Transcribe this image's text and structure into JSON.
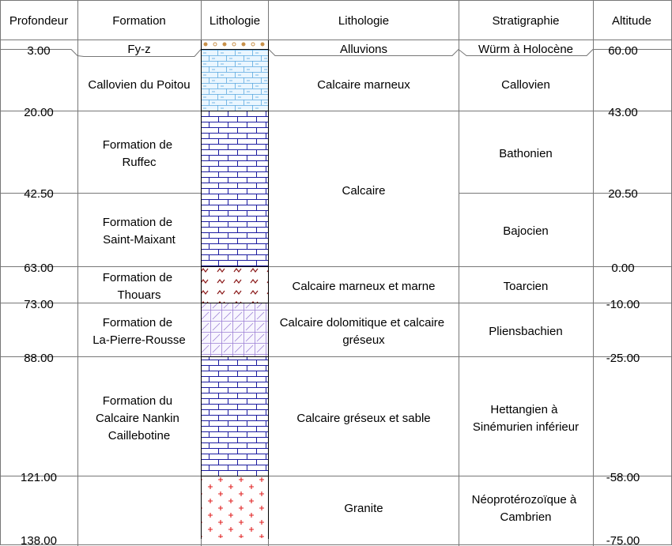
{
  "headers": {
    "depth": "Profondeur",
    "formation": "Formation",
    "lithology_pattern": "Lithologie",
    "lithology": "Lithologie",
    "stratigraphy": "Stratigraphie",
    "altitude": "Altitude"
  },
  "top_row": {
    "formation": "Fy-z",
    "lithology": "Alluvions",
    "stratigraphy": "Würm à Holocène"
  },
  "depths": [
    "3.00",
    "20.00",
    "42.50",
    "63.00",
    "73.00",
    "88.00",
    "121.00",
    "138.00"
  ],
  "altitudes": [
    "60.00",
    "43.00",
    "20.50",
    "0.00",
    "-10.00",
    "-25.00",
    "-58.00",
    "-75.00"
  ],
  "formations": [
    [
      "Callovien du Poitou"
    ],
    [
      "Formation de",
      "Ruffec"
    ],
    [
      "Formation de",
      "Saint-Maixant"
    ],
    [
      "Formation de",
      "Thouars"
    ],
    [
      "Formation de",
      "La-Pierre-Rousse"
    ],
    [
      "Formation du",
      "Calcaire Nankin",
      "Caillebotine"
    ]
  ],
  "lithologies": [
    [
      "Calcaire marneux"
    ],
    [
      "Calcaire"
    ],
    [
      "Calcaire marneux et marne"
    ],
    [
      "Calcaire dolomitique et calcaire",
      "gréseux"
    ],
    [
      "Calcaire gréseux et sable"
    ],
    [
      "Granite"
    ]
  ],
  "stratigraphies": [
    [
      "Callovien"
    ],
    [
      "Bathonien"
    ],
    [
      "Bajocien"
    ],
    [
      "Toarcien"
    ],
    [
      "Pliensbachien"
    ],
    [
      "Hettangien à",
      "Sinémurien inférieur"
    ],
    [
      "Néoprotérozoïque  à",
      "Cambrien"
    ]
  ],
  "patterns": [
    {
      "name": "alluvions",
      "color": "#c8914a"
    },
    {
      "name": "calcaire-marneux",
      "color": "#5aa8e0"
    },
    {
      "name": "calcaire",
      "color": "#1c1ca0"
    },
    {
      "name": "marne",
      "color": "#8b1a1a"
    },
    {
      "name": "calcaire-dolomitique",
      "color": "#9b7fd4"
    },
    {
      "name": "granite",
      "color": "#e02020"
    }
  ]
}
